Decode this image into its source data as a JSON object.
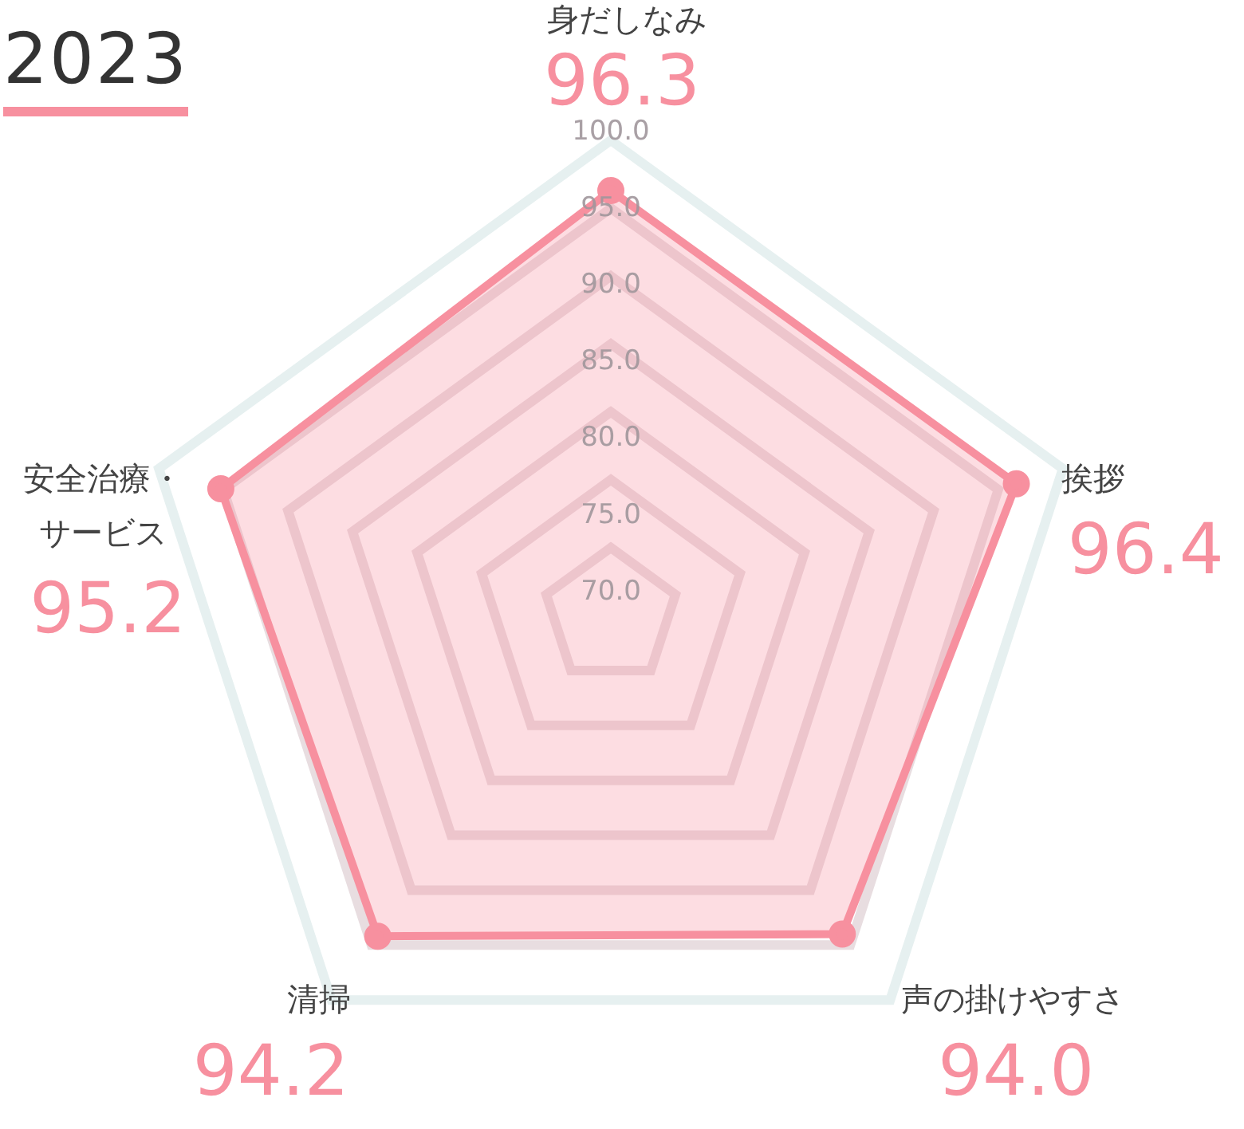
{
  "chart_data": {
    "type": "radar",
    "title": "2023",
    "categories": [
      "身だしなみ",
      "挨拶",
      "声の掛けやすさ",
      "清掃",
      "安全治療・サービス"
    ],
    "series": [
      {
        "color": "#f7909f",
        "values": [
          96.3,
          96.4,
          94.0,
          94.2,
          95.2
        ],
        "value_labels": [
          "96.3",
          "96.4",
          "94.0",
          "94.2",
          "95.2"
        ]
      }
    ],
    "ylim": [
      65,
      100
    ],
    "yticks": [
      {
        "value": 70,
        "label": "70.0"
      },
      {
        "value": 75,
        "label": "75.0"
      },
      {
        "value": 80,
        "label": "80.0"
      },
      {
        "value": 85,
        "label": "85.0"
      },
      {
        "value": 90,
        "label": "90.0"
      },
      {
        "value": 95,
        "label": "95.0"
      },
      {
        "value": 100,
        "label": "100.0"
      }
    ],
    "legend": false,
    "marker": "circle"
  }
}
